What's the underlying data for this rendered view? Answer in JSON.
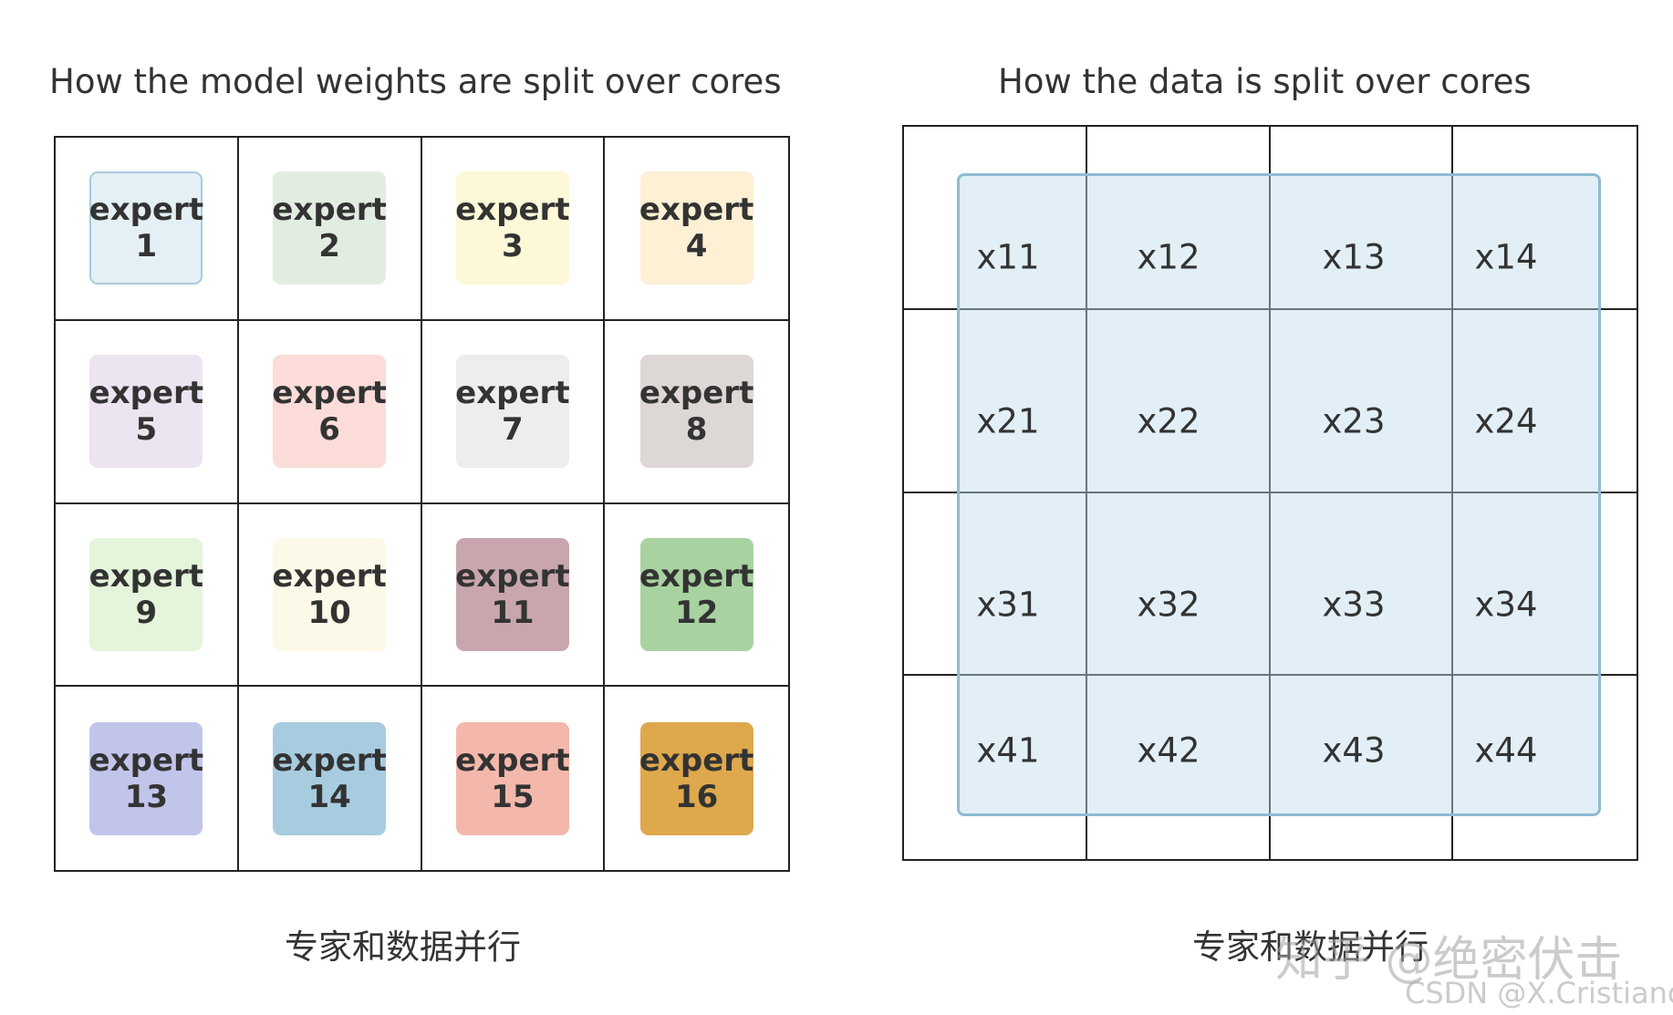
{
  "left_panel": {
    "title": "How the model weights are split over cores",
    "caption": "专家和数据并行",
    "experts": [
      {
        "word": "expert",
        "number": "1",
        "color": "#e4f0f6",
        "outlined": true
      },
      {
        "word": "expert",
        "number": "2",
        "color": "#e2ede2"
      },
      {
        "word": "expert",
        "number": "3",
        "color": "#fdf8d8"
      },
      {
        "word": "expert",
        "number": "4",
        "color": "#fdf0d4"
      },
      {
        "word": "expert",
        "number": "5",
        "color": "#ece4f1"
      },
      {
        "word": "expert",
        "number": "6",
        "color": "#fbdcd8"
      },
      {
        "word": "expert",
        "number": "7",
        "color": "#efecec"
      },
      {
        "word": "expert",
        "number": "8",
        "color": "#ddd7d6"
      },
      {
        "word": "expert",
        "number": "9",
        "color": "#e4f5db"
      },
      {
        "word": "expert",
        "number": "10",
        "color": "#fcf9e8"
      },
      {
        "word": "expert",
        "number": "11",
        "color": "#c9a6ae"
      },
      {
        "word": "expert",
        "number": "12",
        "color": "#a8d3a1"
      },
      {
        "word": "expert",
        "number": "13",
        "color": "#c1c5ea"
      },
      {
        "word": "expert",
        "number": "14",
        "color": "#a7cce0"
      },
      {
        "word": "expert",
        "number": "15",
        "color": "#f3b8ab"
      },
      {
        "word": "expert",
        "number": "16",
        "color": "#dea84c"
      }
    ]
  },
  "right_panel": {
    "title": "How the data is split over cores",
    "caption": "专家和数据并行",
    "data_blocks": [
      [
        "x11",
        "x12",
        "x13",
        "x14"
      ],
      [
        "x21",
        "x22",
        "x23",
        "x24"
      ],
      [
        "x31",
        "x32",
        "x33",
        "x34"
      ],
      [
        "x41",
        "x42",
        "x43",
        "x44"
      ]
    ]
  },
  "watermarks": {
    "zhihu": "知乎 @绝密伏击",
    "csdn": "CSDN @X.Cristiano"
  }
}
